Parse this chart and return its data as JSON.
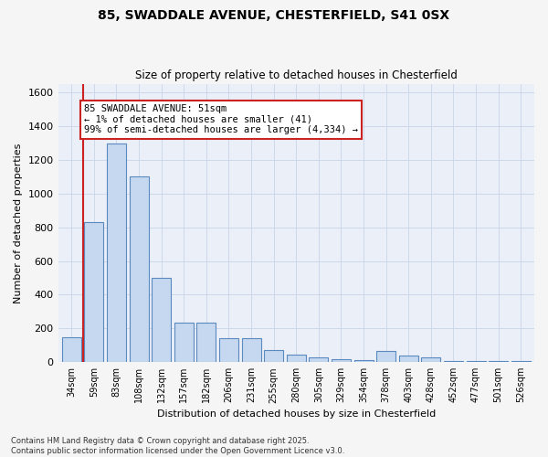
{
  "title1": "85, SWADDALE AVENUE, CHESTERFIELD, S41 0SX",
  "title2": "Size of property relative to detached houses in Chesterfield",
  "xlabel": "Distribution of detached houses by size in Chesterfield",
  "ylabel": "Number of detached properties",
  "categories": [
    "34sqm",
    "59sqm",
    "83sqm",
    "108sqm",
    "132sqm",
    "157sqm",
    "182sqm",
    "206sqm",
    "231sqm",
    "255sqm",
    "280sqm",
    "305sqm",
    "329sqm",
    "354sqm",
    "378sqm",
    "403sqm",
    "428sqm",
    "452sqm",
    "477sqm",
    "501sqm",
    "526sqm"
  ],
  "values": [
    150,
    830,
    1300,
    1100,
    500,
    235,
    235,
    140,
    140,
    70,
    45,
    30,
    15,
    10,
    65,
    40,
    30,
    5,
    5,
    5,
    5
  ],
  "bar_color": "#c5d8f0",
  "bar_edge_color": "#5a8abf",
  "annotation_box_color": "#ffffff",
  "annotation_border_color": "#cc2222",
  "annotation_text": "85 SWADDALE AVENUE: 51sqm\n← 1% of detached houses are smaller (41)\n99% of semi-detached houses are larger (4,334) →",
  "vline_color": "#cc2222",
  "ylim": [
    0,
    1650
  ],
  "yticks": [
    0,
    200,
    400,
    600,
    800,
    1000,
    1200,
    1400,
    1600
  ],
  "grid_color": "#c8d4e8",
  "bg_color": "#eaeff8",
  "footer1": "Contains HM Land Registry data © Crown copyright and database right 2025.",
  "footer2": "Contains public sector information licensed under the Open Government Licence v3.0."
}
